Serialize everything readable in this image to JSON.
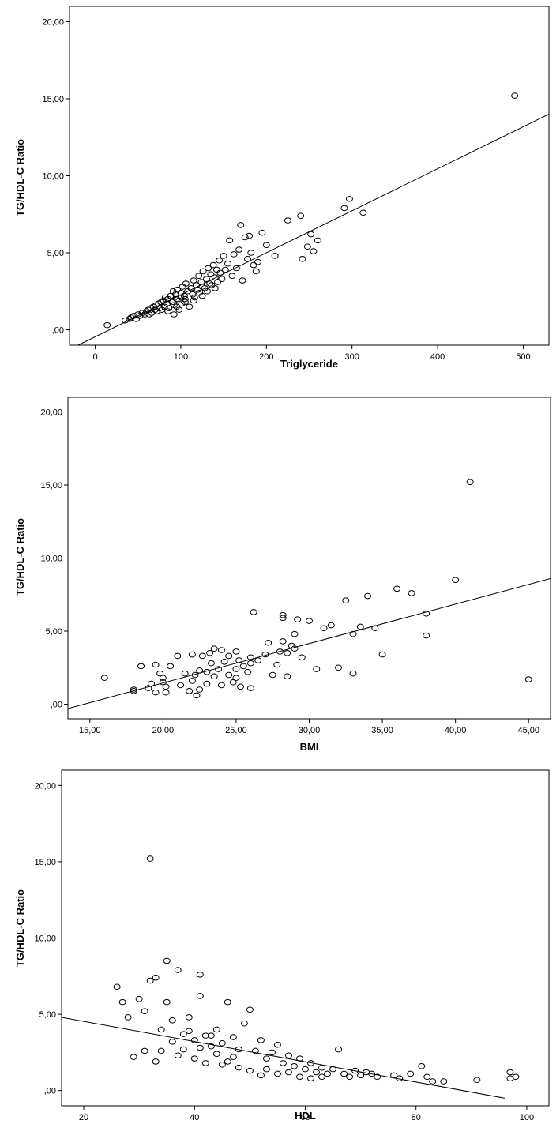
{
  "chart_data": [
    {
      "type": "scatter",
      "xlabel": "Triglyceride",
      "ylabel": "TG/HDL-C Ratio",
      "xlim": [
        -30,
        530
      ],
      "ylim": [
        -1,
        21
      ],
      "xticks": [
        0,
        100,
        200,
        300,
        400,
        500
      ],
      "xtick_labels": [
        "0",
        "100",
        "200",
        "300",
        "400",
        "500"
      ],
      "yticks": [
        0,
        5,
        10,
        15,
        20
      ],
      "ytick_labels": [
        ",00",
        "5,00",
        "10,00",
        "15,00",
        "20,00"
      ],
      "fit_line": {
        "x": [
          -20,
          530
        ],
        "y": [
          -1.0,
          14.0
        ]
      },
      "points": [
        [
          14,
          0.3
        ],
        [
          35,
          0.6
        ],
        [
          40,
          0.7
        ],
        [
          42,
          0.8
        ],
        [
          45,
          0.9
        ],
        [
          48,
          0.7
        ],
        [
          50,
          1.0
        ],
        [
          52,
          0.9
        ],
        [
          55,
          1.1
        ],
        [
          58,
          1.0
        ],
        [
          60,
          1.2
        ],
        [
          62,
          1.3
        ],
        [
          63,
          1.0
        ],
        [
          65,
          1.4
        ],
        [
          66,
          1.1
        ],
        [
          68,
          1.5
        ],
        [
          70,
          1.3
        ],
        [
          71,
          1.6
        ],
        [
          72,
          1.2
        ],
        [
          74,
          1.7
        ],
        [
          75,
          1.4
        ],
        [
          77,
          1.8
        ],
        [
          78,
          1.3
        ],
        [
          80,
          1.9
        ],
        [
          81,
          1.5
        ],
        [
          82,
          2.1
        ],
        [
          84,
          1.7
        ],
        [
          85,
          2.0
        ],
        [
          86,
          1.4
        ],
        [
          88,
          2.2
        ],
        [
          90,
          1.8
        ],
        [
          91,
          2.5
        ],
        [
          92,
          1.6
        ],
        [
          94,
          2.3
        ],
        [
          95,
          2.0
        ],
        [
          96,
          2.6
        ],
        [
          98,
          1.9
        ],
        [
          100,
          2.4
        ],
        [
          101,
          1.7
        ],
        [
          102,
          2.8
        ],
        [
          104,
          2.2
        ],
        [
          105,
          2.0
        ],
        [
          106,
          3.0
        ],
        [
          108,
          2.5
        ],
        [
          110,
          1.5
        ],
        [
          112,
          2.7
        ],
        [
          114,
          2.3
        ],
        [
          115,
          3.2
        ],
        [
          116,
          2.1
        ],
        [
          118,
          2.9
        ],
        [
          120,
          2.6
        ],
        [
          121,
          3.5
        ],
        [
          122,
          2.4
        ],
        [
          124,
          3.1
        ],
        [
          125,
          2.8
        ],
        [
          126,
          3.8
        ],
        [
          128,
          2.7
        ],
        [
          130,
          3.3
        ],
        [
          131,
          2.5
        ],
        [
          132,
          4.0
        ],
        [
          134,
          3.0
        ],
        [
          135,
          3.6
        ],
        [
          136,
          2.9
        ],
        [
          138,
          4.2
        ],
        [
          140,
          3.4
        ],
        [
          142,
          3.9
        ],
        [
          143,
          3.1
        ],
        [
          145,
          4.5
        ],
        [
          146,
          3.7
        ],
        [
          148,
          3.3
        ],
        [
          150,
          4.8
        ],
        [
          152,
          3.9
        ],
        [
          155,
          4.3
        ],
        [
          157,
          5.8
        ],
        [
          160,
          3.5
        ],
        [
          162,
          4.9
        ],
        [
          165,
          4.0
        ],
        [
          168,
          5.2
        ],
        [
          170,
          6.8
        ],
        [
          172,
          3.2
        ],
        [
          175,
          6.0
        ],
        [
          178,
          4.6
        ],
        [
          180,
          6.1
        ],
        [
          182,
          5.0
        ],
        [
          185,
          4.2
        ],
        [
          188,
          3.8
        ],
        [
          190,
          4.4
        ],
        [
          195,
          6.3
        ],
        [
          200,
          5.5
        ],
        [
          210,
          4.8
        ],
        [
          225,
          7.1
        ],
        [
          240,
          7.4
        ],
        [
          242,
          4.6
        ],
        [
          248,
          5.4
        ],
        [
          252,
          6.2
        ],
        [
          255,
          5.1
        ],
        [
          260,
          5.8
        ],
        [
          291,
          7.9
        ],
        [
          297,
          8.5
        ],
        [
          313,
          7.6
        ],
        [
          490,
          15.2
        ],
        [
          85,
          1.2
        ],
        [
          92,
          1.0
        ],
        [
          98,
          1.3
        ],
        [
          105,
          1.8
        ],
        [
          115,
          1.9
        ],
        [
          125,
          2.2
        ],
        [
          140,
          2.7
        ],
        [
          100,
          2.1
        ],
        [
          95,
          1.5
        ]
      ]
    },
    {
      "type": "scatter",
      "xlabel": "BMI",
      "ylabel": "TG/HDL-C Ratio",
      "xlim": [
        13.5,
        46.5
      ],
      "ylim": [
        -1,
        21
      ],
      "xticks": [
        15,
        20,
        25,
        30,
        35,
        40,
        45
      ],
      "xtick_labels": [
        "15,00",
        "20,00",
        "25,00",
        "30,00",
        "35,00",
        "40,00",
        "45,00"
      ],
      "yticks": [
        0,
        5,
        10,
        15,
        20
      ],
      "ytick_labels": [
        ",00",
        "5,00",
        "10,00",
        "15,00",
        "20,00"
      ],
      "fit_line": {
        "x": [
          13.5,
          46.5
        ],
        "y": [
          -0.3,
          8.6
        ]
      },
      "points": [
        [
          16.0,
          1.8
        ],
        [
          18.0,
          0.9
        ],
        [
          18.0,
          1.0
        ],
        [
          18.5,
          2.6
        ],
        [
          19.0,
          1.1
        ],
        [
          19.2,
          1.4
        ],
        [
          19.5,
          2.7
        ],
        [
          19.5,
          0.8
        ],
        [
          19.8,
          2.1
        ],
        [
          20.0,
          1.5
        ],
        [
          20.0,
          1.8
        ],
        [
          20.2,
          1.2
        ],
        [
          20.2,
          0.8
        ],
        [
          20.5,
          2.6
        ],
        [
          21.0,
          3.3
        ],
        [
          21.2,
          1.3
        ],
        [
          21.5,
          2.1
        ],
        [
          21.8,
          0.9
        ],
        [
          22.0,
          1.6
        ],
        [
          22.0,
          3.4
        ],
        [
          22.2,
          2.0
        ],
        [
          22.3,
          0.6
        ],
        [
          22.5,
          2.3
        ],
        [
          22.5,
          1.0
        ],
        [
          22.7,
          3.3
        ],
        [
          23.0,
          2.2
        ],
        [
          23.0,
          1.4
        ],
        [
          23.2,
          3.5
        ],
        [
          23.3,
          2.8
        ],
        [
          23.5,
          3.8
        ],
        [
          23.5,
          1.9
        ],
        [
          23.8,
          2.4
        ],
        [
          24.0,
          3.7
        ],
        [
          24.0,
          1.3
        ],
        [
          24.2,
          2.9
        ],
        [
          24.5,
          3.3
        ],
        [
          24.5,
          2.0
        ],
        [
          24.8,
          1.5
        ],
        [
          25.0,
          3.6
        ],
        [
          25.0,
          2.4
        ],
        [
          25.0,
          1.8
        ],
        [
          25.2,
          3.0
        ],
        [
          25.3,
          1.2
        ],
        [
          25.5,
          2.6
        ],
        [
          25.8,
          2.2
        ],
        [
          26.0,
          3.2
        ],
        [
          26.0,
          1.1
        ],
        [
          26.0,
          2.8
        ],
        [
          26.2,
          6.3
        ],
        [
          26.5,
          3.0
        ],
        [
          27.0,
          3.4
        ],
        [
          27.2,
          4.2
        ],
        [
          27.5,
          2.0
        ],
        [
          27.8,
          2.7
        ],
        [
          28.0,
          3.6
        ],
        [
          28.2,
          4.3
        ],
        [
          28.2,
          6.1
        ],
        [
          28.2,
          5.9
        ],
        [
          28.5,
          3.5
        ],
        [
          28.5,
          1.9
        ],
        [
          28.8,
          4.0
        ],
        [
          29.0,
          4.8
        ],
        [
          29.0,
          3.8
        ],
        [
          29.2,
          5.8
        ],
        [
          29.5,
          3.2
        ],
        [
          30.0,
          5.7
        ],
        [
          30.5,
          2.4
        ],
        [
          31.0,
          5.2
        ],
        [
          31.5,
          5.4
        ],
        [
          32.0,
          2.5
        ],
        [
          32.5,
          7.1
        ],
        [
          33.0,
          4.8
        ],
        [
          33.0,
          2.1
        ],
        [
          33.5,
          5.3
        ],
        [
          34.0,
          7.4
        ],
        [
          34.5,
          5.2
        ],
        [
          35.0,
          3.4
        ],
        [
          36.0,
          7.9
        ],
        [
          37.0,
          7.6
        ],
        [
          38.0,
          6.2
        ],
        [
          38.0,
          4.7
        ],
        [
          40.0,
          8.5
        ],
        [
          41.0,
          15.2
        ],
        [
          45.0,
          1.7
        ]
      ]
    },
    {
      "type": "scatter",
      "xlabel": "HDL",
      "ylabel": "TG/HDL-C Ratio",
      "xlim": [
        16,
        104
      ],
      "ylim": [
        -1,
        21
      ],
      "xticks": [
        20,
        40,
        60,
        80,
        100
      ],
      "xtick_labels": [
        "20",
        "40",
        "60",
        "80",
        "100"
      ],
      "yticks": [
        0,
        5,
        10,
        15,
        20
      ],
      "ytick_labels": [
        ",00",
        "5,00",
        "10,00",
        "15,00",
        "20,00"
      ],
      "fit_line": {
        "x": [
          16,
          96
        ],
        "y": [
          4.8,
          -0.5
        ]
      },
      "points": [
        [
          26,
          6.8
        ],
        [
          27,
          5.8
        ],
        [
          28,
          4.8
        ],
        [
          29,
          2.2
        ],
        [
          30,
          6.0
        ],
        [
          31,
          5.2
        ],
        [
          32,
          15.2
        ],
        [
          32,
          7.2
        ],
        [
          33,
          7.4
        ],
        [
          34,
          4.0
        ],
        [
          35,
          8.5
        ],
        [
          35,
          5.8
        ],
        [
          36,
          4.6
        ],
        [
          37,
          7.9
        ],
        [
          38,
          3.7
        ],
        [
          39,
          4.8
        ],
        [
          40,
          3.3
        ],
        [
          41,
          7.6
        ],
        [
          41,
          6.2
        ],
        [
          42,
          3.6
        ],
        [
          43,
          2.9
        ],
        [
          44,
          4.0
        ],
        [
          45,
          3.1
        ],
        [
          46,
          5.8
        ],
        [
          47,
          3.5
        ],
        [
          48,
          2.7
        ],
        [
          49,
          4.4
        ],
        [
          50,
          5.3
        ],
        [
          51,
          2.6
        ],
        [
          52,
          3.3
        ],
        [
          53,
          2.1
        ],
        [
          54,
          2.5
        ],
        [
          55,
          3.0
        ],
        [
          56,
          1.8
        ],
        [
          57,
          2.3
        ],
        [
          58,
          1.6
        ],
        [
          59,
          2.1
        ],
        [
          60,
          1.4
        ],
        [
          61,
          1.8
        ],
        [
          62,
          1.2
        ],
        [
          63,
          1.5
        ],
        [
          64,
          1.1
        ],
        [
          65,
          1.4
        ],
        [
          66,
          2.7
        ],
        [
          67,
          1.1
        ],
        [
          68,
          0.9
        ],
        [
          69,
          1.3
        ],
        [
          70,
          1.0
        ],
        [
          71,
          1.2
        ],
        [
          72,
          1.1
        ],
        [
          73,
          0.9
        ],
        [
          76,
          1.0
        ],
        [
          77,
          0.8
        ],
        [
          79,
          1.1
        ],
        [
          81,
          1.6
        ],
        [
          82,
          0.9
        ],
        [
          83,
          0.6
        ],
        [
          85,
          0.6
        ],
        [
          91,
          0.7
        ],
        [
          97,
          1.2
        ],
        [
          97,
          0.8
        ],
        [
          98,
          0.9
        ],
        [
          38,
          2.7
        ],
        [
          40,
          2.1
        ],
        [
          42,
          1.8
        ],
        [
          44,
          2.4
        ],
        [
          46,
          1.9
        ],
        [
          48,
          1.5
        ],
        [
          50,
          1.3
        ],
        [
          52,
          1.0
        ],
        [
          36,
          3.2
        ],
        [
          34,
          2.6
        ],
        [
          39,
          3.9
        ],
        [
          43,
          3.6
        ],
        [
          47,
          2.2
        ],
        [
          45,
          1.7
        ],
        [
          53,
          1.4
        ],
        [
          55,
          1.1
        ],
        [
          57,
          1.2
        ],
        [
          59,
          0.9
        ],
        [
          61,
          0.8
        ],
        [
          63,
          0.9
        ],
        [
          41,
          2.8
        ],
        [
          37,
          2.3
        ],
        [
          33,
          1.9
        ],
        [
          31,
          2.6
        ]
      ]
    }
  ]
}
